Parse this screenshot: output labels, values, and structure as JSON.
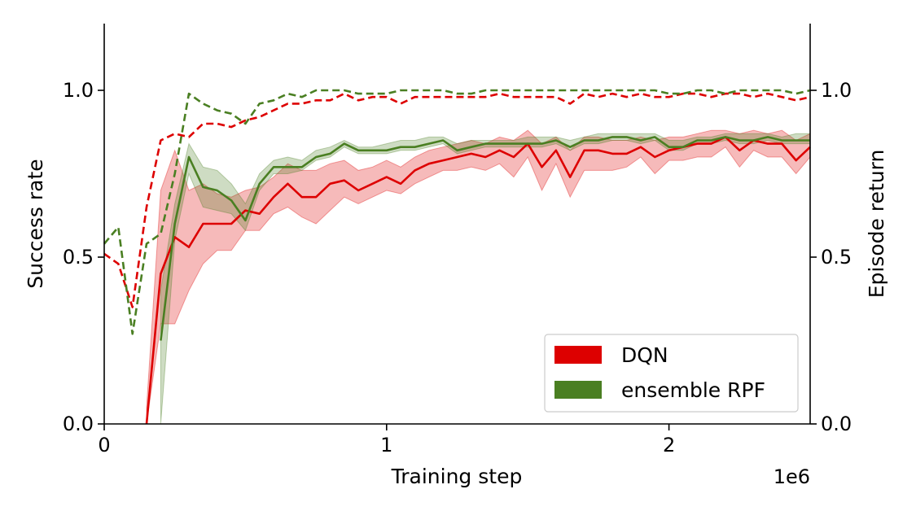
{
  "chart_data": {
    "type": "line",
    "xlabel": "Training step",
    "x_offset_label": "1e6",
    "ylabel_left": "Success rate",
    "ylabel_right": "Episode return",
    "xlim": [
      0,
      2.5
    ],
    "ylim_left": [
      0,
      1.2
    ],
    "ylim_right": [
      0,
      1.2
    ],
    "x_ticks": [
      0,
      1,
      2
    ],
    "x_tick_labels": [
      "0",
      "1",
      "2"
    ],
    "y_ticks_left": [
      0.0,
      0.5,
      1.0
    ],
    "y_tick_labels_left": [
      "0.0",
      "0.5",
      "1.0"
    ],
    "y_ticks_right": [
      0.0,
      0.5,
      1.0
    ],
    "y_tick_labels_right": [
      "0.0",
      "0.5",
      "1.0"
    ],
    "legend_position": "bottom-right",
    "grid": false,
    "series": [
      {
        "name": "DQN",
        "color": "#dd0000",
        "metric": "success rate (solid, mean with shaded band)",
        "x": [
          0.15,
          0.2,
          0.25,
          0.3,
          0.35,
          0.4,
          0.45,
          0.5,
          0.55,
          0.6,
          0.65,
          0.7,
          0.75,
          0.8,
          0.85,
          0.9,
          0.95,
          1.0,
          1.05,
          1.1,
          1.15,
          1.2,
          1.25,
          1.3,
          1.35,
          1.4,
          1.45,
          1.5,
          1.55,
          1.6,
          1.65,
          1.7,
          1.75,
          1.8,
          1.85,
          1.9,
          1.95,
          2.0,
          2.05,
          2.1,
          2.15,
          2.2,
          2.25,
          2.3,
          2.35,
          2.4,
          2.45,
          2.5
        ],
        "y": [
          0.0,
          0.45,
          0.56,
          0.53,
          0.6,
          0.6,
          0.6,
          0.64,
          0.63,
          0.68,
          0.72,
          0.68,
          0.68,
          0.72,
          0.73,
          0.7,
          0.72,
          0.74,
          0.72,
          0.76,
          0.78,
          0.79,
          0.8,
          0.81,
          0.8,
          0.82,
          0.8,
          0.84,
          0.77,
          0.82,
          0.74,
          0.82,
          0.82,
          0.81,
          0.81,
          0.83,
          0.8,
          0.82,
          0.83,
          0.84,
          0.84,
          0.86,
          0.82,
          0.85,
          0.84,
          0.84,
          0.79,
          0.83
        ],
        "y_lower": [
          0.0,
          0.3,
          0.3,
          0.4,
          0.48,
          0.52,
          0.52,
          0.58,
          0.58,
          0.63,
          0.65,
          0.62,
          0.6,
          0.64,
          0.68,
          0.66,
          0.68,
          0.7,
          0.69,
          0.72,
          0.74,
          0.76,
          0.76,
          0.77,
          0.76,
          0.78,
          0.74,
          0.8,
          0.7,
          0.78,
          0.68,
          0.76,
          0.76,
          0.76,
          0.77,
          0.8,
          0.75,
          0.79,
          0.79,
          0.8,
          0.8,
          0.83,
          0.77,
          0.82,
          0.8,
          0.8,
          0.75,
          0.8
        ],
        "y_upper": [
          0.05,
          0.7,
          0.82,
          0.7,
          0.72,
          0.69,
          0.68,
          0.7,
          0.71,
          0.74,
          0.78,
          0.76,
          0.76,
          0.78,
          0.79,
          0.76,
          0.77,
          0.79,
          0.77,
          0.8,
          0.82,
          0.83,
          0.84,
          0.85,
          0.84,
          0.86,
          0.85,
          0.88,
          0.84,
          0.86,
          0.82,
          0.86,
          0.86,
          0.85,
          0.85,
          0.86,
          0.85,
          0.86,
          0.86,
          0.87,
          0.88,
          0.88,
          0.87,
          0.88,
          0.87,
          0.88,
          0.85,
          0.87
        ]
      },
      {
        "name": "ensemble RPF",
        "color": "#4a7f22",
        "metric": "success rate (solid, mean with shaded band)",
        "x": [
          0.2,
          0.25,
          0.3,
          0.35,
          0.4,
          0.45,
          0.5,
          0.55,
          0.6,
          0.65,
          0.7,
          0.75,
          0.8,
          0.85,
          0.9,
          0.95,
          1.0,
          1.05,
          1.1,
          1.15,
          1.2,
          1.25,
          1.3,
          1.35,
          1.4,
          1.45,
          1.5,
          1.55,
          1.6,
          1.65,
          1.7,
          1.75,
          1.8,
          1.85,
          1.9,
          1.95,
          2.0,
          2.05,
          2.1,
          2.15,
          2.2,
          2.25,
          2.3,
          2.35,
          2.4,
          2.45,
          2.5
        ],
        "y": [
          0.25,
          0.6,
          0.8,
          0.71,
          0.7,
          0.67,
          0.61,
          0.72,
          0.77,
          0.77,
          0.77,
          0.8,
          0.81,
          0.84,
          0.82,
          0.82,
          0.82,
          0.83,
          0.83,
          0.84,
          0.85,
          0.82,
          0.83,
          0.84,
          0.84,
          0.84,
          0.84,
          0.84,
          0.85,
          0.83,
          0.85,
          0.85,
          0.86,
          0.86,
          0.85,
          0.86,
          0.83,
          0.83,
          0.85,
          0.85,
          0.86,
          0.85,
          0.85,
          0.86,
          0.85,
          0.85,
          0.85
        ],
        "y_lower": [
          0.0,
          0.55,
          0.75,
          0.65,
          0.64,
          0.63,
          0.58,
          0.7,
          0.75,
          0.75,
          0.76,
          0.79,
          0.8,
          0.83,
          0.81,
          0.81,
          0.81,
          0.82,
          0.82,
          0.83,
          0.84,
          0.81,
          0.82,
          0.83,
          0.83,
          0.83,
          0.83,
          0.83,
          0.84,
          0.82,
          0.84,
          0.84,
          0.85,
          0.85,
          0.84,
          0.85,
          0.82,
          0.82,
          0.84,
          0.84,
          0.85,
          0.84,
          0.84,
          0.85,
          0.84,
          0.84,
          0.84
        ],
        "y_upper": [
          0.4,
          0.66,
          0.84,
          0.77,
          0.76,
          0.72,
          0.66,
          0.75,
          0.79,
          0.8,
          0.79,
          0.82,
          0.83,
          0.85,
          0.83,
          0.83,
          0.84,
          0.85,
          0.85,
          0.86,
          0.86,
          0.84,
          0.85,
          0.85,
          0.85,
          0.85,
          0.86,
          0.86,
          0.86,
          0.85,
          0.86,
          0.87,
          0.87,
          0.87,
          0.87,
          0.87,
          0.85,
          0.85,
          0.86,
          0.86,
          0.87,
          0.87,
          0.87,
          0.87,
          0.86,
          0.87,
          0.87
        ]
      },
      {
        "name": "",
        "color": "#dd0000",
        "metric": "episode return (dashed, right axis)",
        "x": [
          0.0,
          0.05,
          0.1,
          0.15,
          0.2,
          0.25,
          0.3,
          0.35,
          0.4,
          0.45,
          0.5,
          0.55,
          0.6,
          0.65,
          0.7,
          0.75,
          0.8,
          0.85,
          0.9,
          0.95,
          1.0,
          1.05,
          1.1,
          1.15,
          1.2,
          1.25,
          1.3,
          1.35,
          1.4,
          1.45,
          1.5,
          1.55,
          1.6,
          1.65,
          1.7,
          1.75,
          1.8,
          1.85,
          1.9,
          1.95,
          2.0,
          2.05,
          2.1,
          2.15,
          2.2,
          2.25,
          2.3,
          2.35,
          2.4,
          2.45,
          2.5
        ],
        "y": [
          0.51,
          0.48,
          0.35,
          0.65,
          0.85,
          0.87,
          0.86,
          0.9,
          0.9,
          0.89,
          0.91,
          0.92,
          0.94,
          0.96,
          0.96,
          0.97,
          0.97,
          0.99,
          0.97,
          0.98,
          0.98,
          0.96,
          0.98,
          0.98,
          0.98,
          0.98,
          0.98,
          0.98,
          0.99,
          0.98,
          0.98,
          0.98,
          0.98,
          0.96,
          0.99,
          0.98,
          0.99,
          0.98,
          0.99,
          0.98,
          0.98,
          0.99,
          0.99,
          0.98,
          0.99,
          0.99,
          0.98,
          0.99,
          0.98,
          0.97,
          0.98
        ]
      },
      {
        "name": "",
        "color": "#4a7f22",
        "metric": "episode return (dashed, right axis)",
        "x": [
          0.0,
          0.05,
          0.1,
          0.15,
          0.2,
          0.25,
          0.3,
          0.35,
          0.4,
          0.45,
          0.5,
          0.55,
          0.6,
          0.65,
          0.7,
          0.75,
          0.8,
          0.85,
          0.9,
          0.95,
          1.0,
          1.05,
          1.1,
          1.15,
          1.2,
          1.25,
          1.3,
          1.35,
          1.4,
          1.45,
          1.5,
          1.55,
          1.6,
          1.65,
          1.7,
          1.75,
          1.8,
          1.85,
          1.9,
          1.95,
          2.0,
          2.05,
          2.1,
          2.15,
          2.2,
          2.25,
          2.3,
          2.35,
          2.4,
          2.45,
          2.5
        ],
        "y": [
          0.54,
          0.59,
          0.27,
          0.54,
          0.57,
          0.75,
          0.99,
          0.96,
          0.94,
          0.93,
          0.9,
          0.96,
          0.97,
          0.99,
          0.98,
          1.0,
          1.0,
          1.0,
          0.99,
          0.99,
          0.99,
          1.0,
          1.0,
          1.0,
          1.0,
          0.99,
          0.99,
          1.0,
          1.0,
          1.0,
          1.0,
          1.0,
          1.0,
          1.0,
          1.0,
          1.0,
          1.0,
          1.0,
          1.0,
          1.0,
          0.99,
          0.99,
          1.0,
          1.0,
          0.99,
          1.0,
          1.0,
          1.0,
          1.0,
          0.99,
          1.0
        ]
      }
    ],
    "legend": [
      {
        "label": "DQN",
        "color": "#dd0000"
      },
      {
        "label": "ensemble RPF",
        "color": "#4a7f22"
      }
    ]
  }
}
